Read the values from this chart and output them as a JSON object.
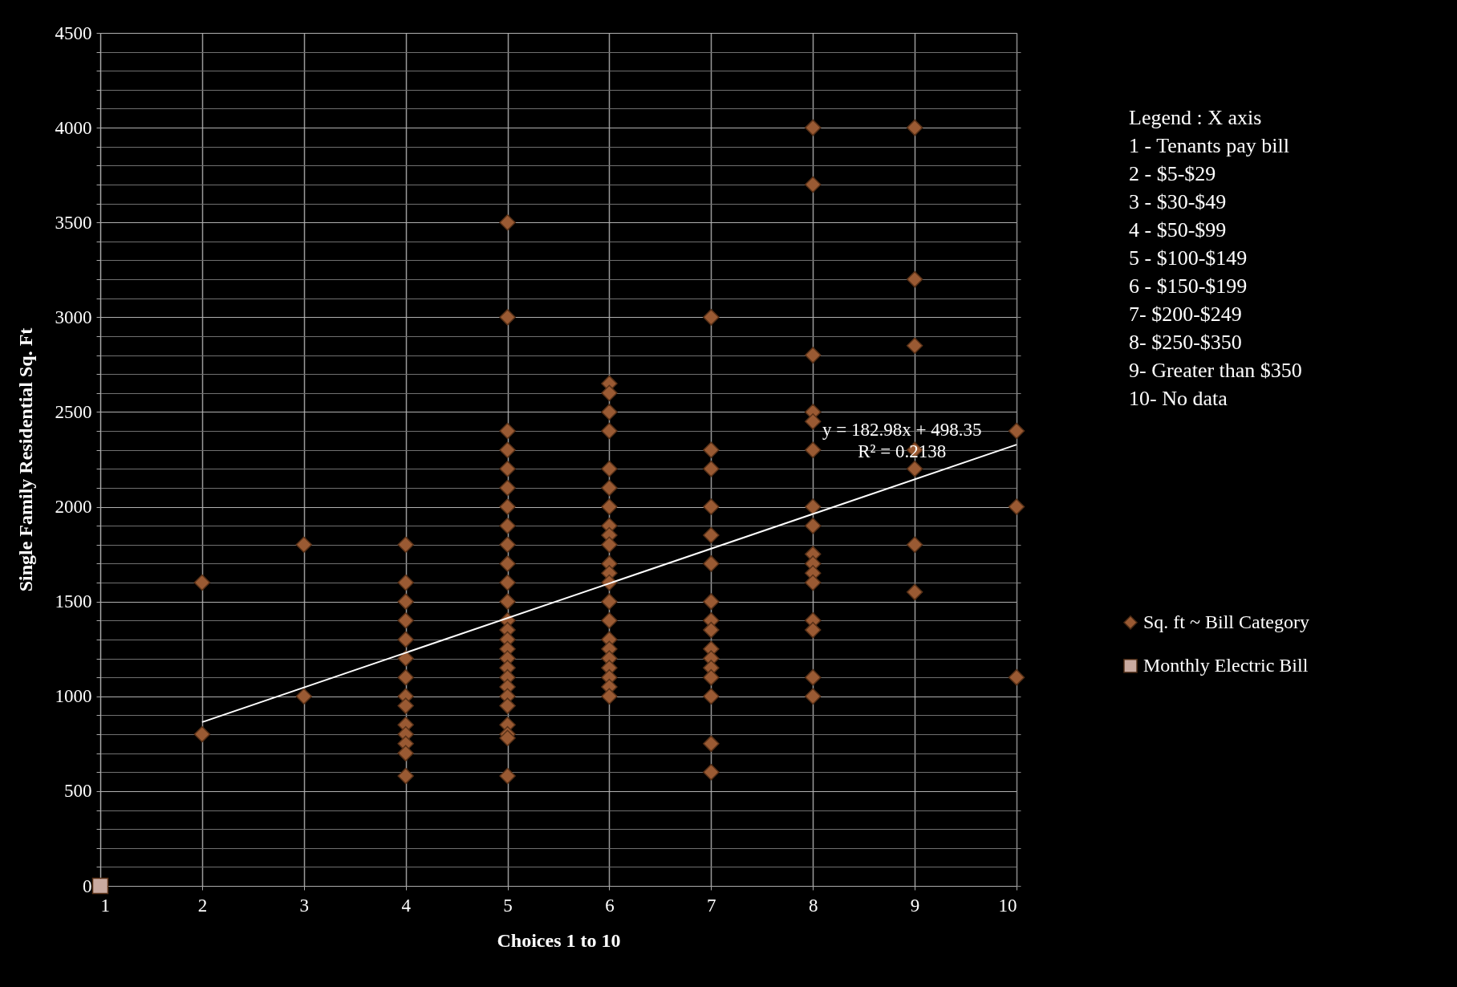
{
  "chart_data": {
    "type": "scatter",
    "xlabel": "Choices  1  to 10",
    "ylabel": "Single   Family Residential    Sq. Ft",
    "xlim": [
      1,
      10
    ],
    "xticks": [
      1,
      2,
      3,
      4,
      5,
      6,
      7,
      8,
      9,
      10
    ],
    "ylim": [
      0,
      4500
    ],
    "yticks": [
      0,
      {
        "value": 100,
        "label": null
      },
      {
        "value": 200,
        "label": null
      },
      {
        "value": 300,
        "label": null
      },
      {
        "value": 400,
        "label": null
      },
      500,
      {
        "value": 600,
        "label": null
      },
      {
        "value": 700,
        "label": null
      },
      {
        "value": 800,
        "label": null
      },
      {
        "value": 900,
        "label": null
      },
      1000,
      {
        "value": 1100,
        "label": null
      },
      {
        "value": 1200,
        "label": null
      },
      {
        "value": 1300,
        "label": null
      },
      {
        "value": 1400,
        "label": null
      },
      1500,
      {
        "value": 1600,
        "label": null
      },
      {
        "value": 1700,
        "label": null
      },
      {
        "value": 1800,
        "label": null
      },
      {
        "value": 1900,
        "label": null
      },
      2000,
      {
        "value": 2100,
        "label": null
      },
      {
        "value": 2200,
        "label": null
      },
      {
        "value": 2300,
        "label": null
      },
      {
        "value": 2400,
        "label": null
      },
      2500,
      {
        "value": 2600,
        "label": null
      },
      {
        "value": 2700,
        "label": null
      },
      {
        "value": 2800,
        "label": null
      },
      {
        "value": 2900,
        "label": null
      },
      3000,
      {
        "value": 3100,
        "label": null
      },
      {
        "value": 3200,
        "label": null
      },
      {
        "value": 3300,
        "label": null
      },
      {
        "value": 3400,
        "label": null
      },
      3500,
      {
        "value": 3600,
        "label": null
      },
      {
        "value": 3700,
        "label": null
      },
      {
        "value": 3800,
        "label": null
      },
      {
        "value": 3900,
        "label": null
      },
      4000,
      {
        "value": 4100,
        "label": null
      },
      {
        "value": 4200,
        "label": null
      },
      {
        "value": 4300,
        "label": null
      },
      {
        "value": 4400,
        "label": null
      },
      4500
    ],
    "grid": true,
    "legend": "right",
    "series": [
      {
        "name": "Sq. ft ~  Bill Category",
        "color": "#9a5a33",
        "marker": "diamond",
        "x": [
          2,
          2,
          3,
          3,
          4,
          4,
          4,
          4,
          4,
          4,
          4,
          4,
          4,
          4,
          4,
          4,
          4,
          4,
          5,
          5,
          5,
          5,
          5,
          5,
          5,
          5,
          5,
          5,
          5,
          5,
          5,
          5,
          5,
          5,
          5,
          5,
          5,
          5,
          5,
          5,
          5,
          5,
          5,
          5,
          6,
          6,
          6,
          6,
          6,
          6,
          6,
          6,
          6,
          6,
          6,
          6,
          6,
          6,
          6,
          6,
          6,
          6,
          6,
          6,
          6,
          6,
          7,
          7,
          7,
          7,
          7,
          7,
          7,
          7,
          7,
          7,
          7,
          7,
          7,
          7,
          7,
          7,
          8,
          8,
          8,
          8,
          8,
          8,
          8,
          8,
          8,
          8,
          8,
          8,
          8,
          8,
          8,
          8,
          9,
          9,
          9,
          9,
          9,
          9,
          9,
          10,
          10,
          10
        ],
        "values": [
          1600,
          800,
          1800,
          1000,
          1800,
          1600,
          1500,
          1400,
          1300,
          1200,
          1100,
          1000,
          950,
          850,
          800,
          750,
          700,
          580,
          3500,
          3000,
          2400,
          2300,
          2200,
          2100,
          2000,
          1900,
          1800,
          1700,
          1600,
          1500,
          1400,
          1350,
          1300,
          1250,
          1200,
          1150,
          1100,
          1050,
          1000,
          950,
          850,
          800,
          780,
          580,
          2650,
          2600,
          2500,
          2400,
          2200,
          2100,
          2000,
          1900,
          1850,
          1800,
          1700,
          1650,
          1600,
          1500,
          1400,
          1300,
          1250,
          1200,
          1150,
          1100,
          1050,
          1000,
          3000,
          2300,
          2200,
          2000,
          1850,
          1700,
          1500,
          1400,
          1350,
          1250,
          1200,
          1150,
          1100,
          1000,
          750,
          600,
          4000,
          3700,
          2800,
          2500,
          2450,
          2300,
          2000,
          1900,
          1750,
          1700,
          1650,
          1600,
          1400,
          1350,
          1100,
          1000,
          4000,
          3200,
          2850,
          2300,
          2200,
          1800,
          1550,
          2400,
          2000,
          1100
        ]
      },
      {
        "name": "Monthly Electric Bill",
        "color": "#c9aaa0",
        "marker": "square",
        "x": [
          1
        ],
        "values": [
          0
        ]
      },
      {
        "type": "line",
        "color": "#ffffff",
        "x": [
          2,
          10
        ],
        "values": [
          864,
          2328
        ]
      }
    ],
    "annotations": [
      "y = 182.98x + 498.35",
      "R² = 0.2138",
      "Legend : X axis ",
      "1 -   Tenants pay bill",
      "2 -   $5-$29",
      "3 -   $30-$49",
      "4 -    $50-$99",
      "5 -    $100-$149",
      "6 -    $150-$199",
      "7-     $200-$249",
      "8-     $250-$350",
      "9-     Greater than $350",
      "10-   No data"
    ]
  }
}
